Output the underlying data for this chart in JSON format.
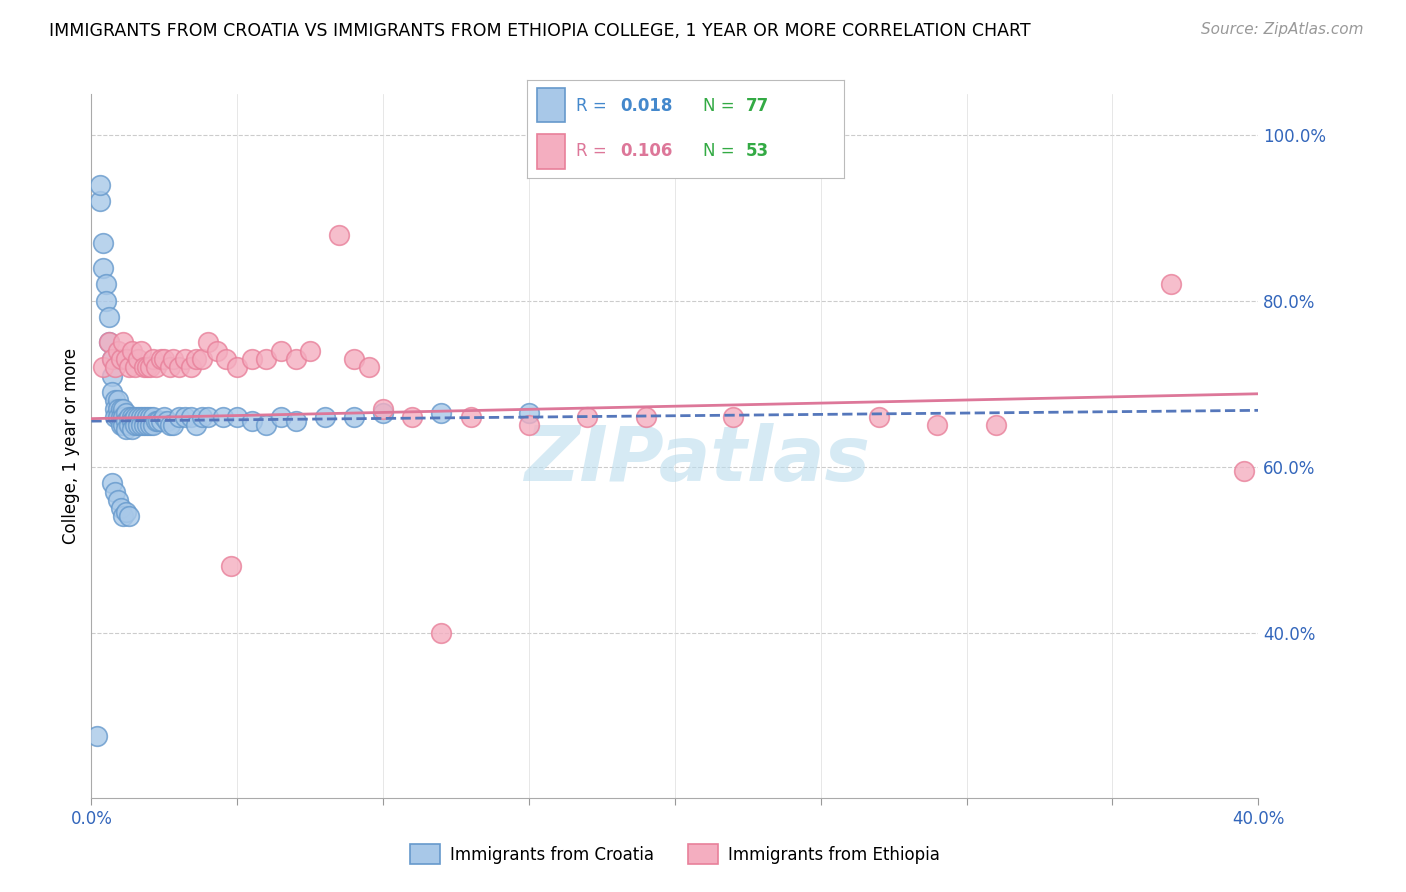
{
  "title": "IMMIGRANTS FROM CROATIA VS IMMIGRANTS FROM ETHIOPIA COLLEGE, 1 YEAR OR MORE CORRELATION CHART",
  "source": "Source: ZipAtlas.com",
  "ylabel": "College, 1 year or more",
  "xlim": [
    0.0,
    0.4
  ],
  "ylim": [
    0.2,
    1.05
  ],
  "x_tick_positions": [
    0.0,
    0.05,
    0.1,
    0.15,
    0.2,
    0.25,
    0.3,
    0.35,
    0.4
  ],
  "x_tick_labels": [
    "0.0%",
    "",
    "",
    "",
    "",
    "",
    "",
    "",
    "40.0%"
  ],
  "y_ticks_right": [
    0.4,
    0.6,
    0.8,
    1.0
  ],
  "y_tick_labels_right": [
    "40.0%",
    "60.0%",
    "80.0%",
    "100.0%"
  ],
  "croatia_R": "0.018",
  "croatia_N": "77",
  "ethiopia_R": "0.106",
  "ethiopia_N": "53",
  "croatia_color": "#a8c8e8",
  "ethiopia_color": "#f4aec0",
  "croatia_edge": "#6699cc",
  "ethiopia_edge": "#e8809a",
  "trendline_croatia_color": "#5577bb",
  "trendline_ethiopia_color": "#dd7799",
  "watermark": "ZIPatlas",
  "watermark_color": "#bbddee",
  "legend_R_color_croatia": "#4488cc",
  "legend_R_color_ethiopia": "#dd7799",
  "legend_N_color": "#33aa44",
  "background_color": "#ffffff",
  "croatia_x": [
    0.002,
    0.003,
    0.003,
    0.004,
    0.004,
    0.005,
    0.005,
    0.006,
    0.006,
    0.007,
    0.007,
    0.007,
    0.008,
    0.008,
    0.008,
    0.009,
    0.009,
    0.009,
    0.01,
    0.01,
    0.01,
    0.011,
    0.011,
    0.011,
    0.012,
    0.012,
    0.012,
    0.013,
    0.013,
    0.014,
    0.014,
    0.014,
    0.015,
    0.015,
    0.016,
    0.016,
    0.017,
    0.017,
    0.018,
    0.018,
    0.019,
    0.019,
    0.02,
    0.02,
    0.021,
    0.021,
    0.022,
    0.023,
    0.024,
    0.025,
    0.026,
    0.027,
    0.028,
    0.03,
    0.032,
    0.034,
    0.036,
    0.038,
    0.04,
    0.045,
    0.05,
    0.055,
    0.06,
    0.065,
    0.07,
    0.08,
    0.09,
    0.1,
    0.12,
    0.15,
    0.007,
    0.008,
    0.009,
    0.01,
    0.011,
    0.012,
    0.013
  ],
  "croatia_y": [
    0.275,
    0.92,
    0.94,
    0.87,
    0.84,
    0.82,
    0.8,
    0.78,
    0.75,
    0.73,
    0.71,
    0.69,
    0.68,
    0.67,
    0.66,
    0.68,
    0.67,
    0.66,
    0.67,
    0.66,
    0.65,
    0.67,
    0.66,
    0.65,
    0.665,
    0.655,
    0.645,
    0.66,
    0.65,
    0.66,
    0.655,
    0.645,
    0.66,
    0.65,
    0.66,
    0.65,
    0.66,
    0.65,
    0.66,
    0.65,
    0.66,
    0.65,
    0.66,
    0.65,
    0.66,
    0.65,
    0.655,
    0.655,
    0.655,
    0.66,
    0.655,
    0.65,
    0.65,
    0.66,
    0.66,
    0.66,
    0.65,
    0.66,
    0.66,
    0.66,
    0.66,
    0.655,
    0.65,
    0.66,
    0.655,
    0.66,
    0.66,
    0.665,
    0.665,
    0.665,
    0.58,
    0.57,
    0.56,
    0.55,
    0.54,
    0.545,
    0.54
  ],
  "ethiopia_x": [
    0.004,
    0.006,
    0.007,
    0.008,
    0.009,
    0.01,
    0.011,
    0.012,
    0.013,
    0.014,
    0.015,
    0.016,
    0.017,
    0.018,
    0.019,
    0.02,
    0.021,
    0.022,
    0.024,
    0.025,
    0.027,
    0.028,
    0.03,
    0.032,
    0.034,
    0.036,
    0.038,
    0.04,
    0.043,
    0.046,
    0.05,
    0.055,
    0.06,
    0.065,
    0.07,
    0.075,
    0.085,
    0.09,
    0.095,
    0.1,
    0.11,
    0.13,
    0.15,
    0.17,
    0.19,
    0.22,
    0.27,
    0.29,
    0.31,
    0.37,
    0.395,
    0.12,
    0.048
  ],
  "ethiopia_y": [
    0.72,
    0.75,
    0.73,
    0.72,
    0.74,
    0.73,
    0.75,
    0.73,
    0.72,
    0.74,
    0.72,
    0.73,
    0.74,
    0.72,
    0.72,
    0.72,
    0.73,
    0.72,
    0.73,
    0.73,
    0.72,
    0.73,
    0.72,
    0.73,
    0.72,
    0.73,
    0.73,
    0.75,
    0.74,
    0.73,
    0.72,
    0.73,
    0.73,
    0.74,
    0.73,
    0.74,
    0.88,
    0.73,
    0.72,
    0.67,
    0.66,
    0.66,
    0.65,
    0.66,
    0.66,
    0.66,
    0.66,
    0.65,
    0.65,
    0.82,
    0.595,
    0.4,
    0.48
  ]
}
